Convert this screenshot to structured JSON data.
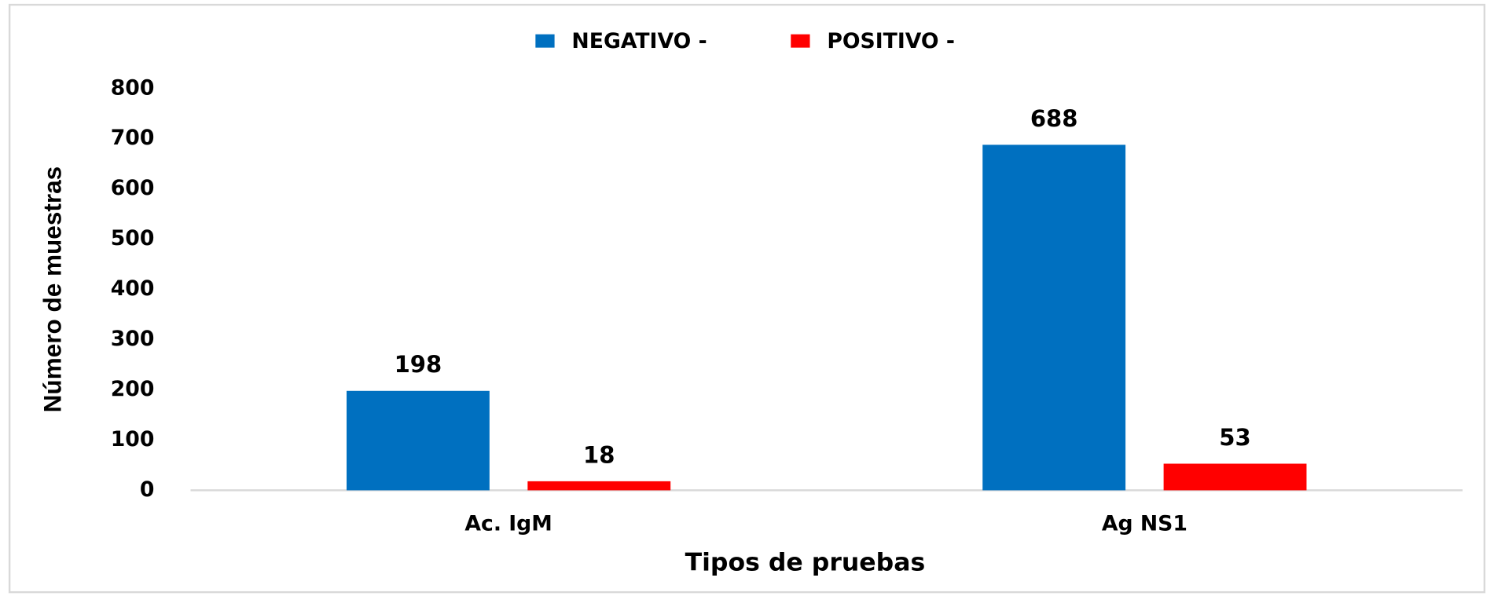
{
  "chart_data": {
    "type": "bar",
    "xlabel": "Tipos de pruebas",
    "ylabel": "Número de muestras",
    "categories": [
      "Ac. IgM",
      "Ag NS1"
    ],
    "series": [
      {
        "name": "NEGATIVO -",
        "color": "#0070c0",
        "values": [
          198,
          688
        ]
      },
      {
        "name": "POSITIVO -",
        "color": "#ff0000",
        "values": [
          18,
          53
        ]
      }
    ],
    "ylim": [
      0,
      800
    ],
    "yticks": [
      0,
      100,
      200,
      300,
      400,
      500,
      600,
      700,
      800
    ],
    "legend": "top",
    "grid": false
  }
}
